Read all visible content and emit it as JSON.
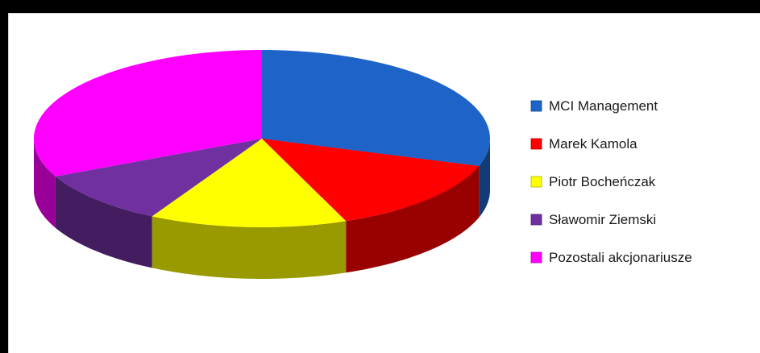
{
  "chart_data": {
    "type": "pie",
    "style": "3d",
    "title": "",
    "legend_position": "right",
    "slices": [
      {
        "label": "MCI Management",
        "value": 30,
        "color": "#1E64C8"
      },
      {
        "label": "Marek Kamola",
        "value": 14,
        "color": "#FF0000"
      },
      {
        "label": "Piotr Bocheńczak",
        "value": 14,
        "color": "#FFFF00"
      },
      {
        "label": "Sławomir Ziemski",
        "value": 10,
        "color": "#7030A0"
      },
      {
        "label": "Pozostali akcjonariusze",
        "value": 32,
        "color": "#FF00FF"
      }
    ]
  }
}
